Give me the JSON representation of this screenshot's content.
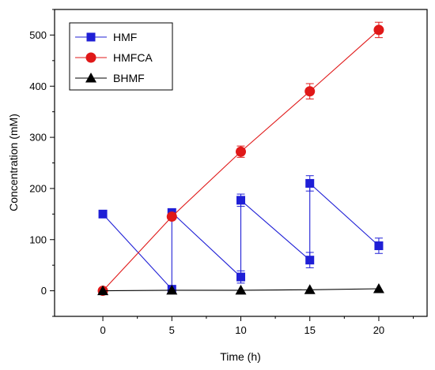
{
  "chart_data": {
    "type": "line",
    "title": "",
    "xlabel": "Time (h)",
    "ylabel": "Concentration (mM)",
    "xlim": [
      -3.5,
      23.5
    ],
    "ylim": [
      -50,
      550
    ],
    "xticks": [
      0,
      5,
      10,
      15,
      20
    ],
    "yticks": [
      0,
      100,
      200,
      300,
      400,
      500
    ],
    "grid": false,
    "legend_position": "top-left",
    "series": [
      {
        "name": "HMF",
        "color": "#1f1fd6",
        "marker": "square",
        "points": [
          {
            "x": 0,
            "y": 150
          },
          {
            "x": 5,
            "y": 3
          },
          {
            "x": 5,
            "y": 153
          },
          {
            "x": 10,
            "y": 27,
            "err": 12
          },
          {
            "x": 10,
            "y": 177,
            "err": 12
          },
          {
            "x": 15,
            "y": 60,
            "err": 15
          },
          {
            "x": 15,
            "y": 210,
            "err": 15
          },
          {
            "x": 20,
            "y": 88,
            "err": 15
          }
        ]
      },
      {
        "name": "HMFCA",
        "color": "#e01818",
        "marker": "circle",
        "points": [
          {
            "x": 0,
            "y": 0
          },
          {
            "x": 5,
            "y": 145
          },
          {
            "x": 10,
            "y": 272,
            "err": 11
          },
          {
            "x": 15,
            "y": 390,
            "err": 15
          },
          {
            "x": 20,
            "y": 510,
            "err": 15
          }
        ]
      },
      {
        "name": "BHMF",
        "color": "#000000",
        "marker": "triangle",
        "points": [
          {
            "x": 0,
            "y": 0
          },
          {
            "x": 5,
            "y": 1
          },
          {
            "x": 10,
            "y": 1
          },
          {
            "x": 15,
            "y": 2
          },
          {
            "x": 20,
            "y": 4
          }
        ]
      }
    ]
  }
}
